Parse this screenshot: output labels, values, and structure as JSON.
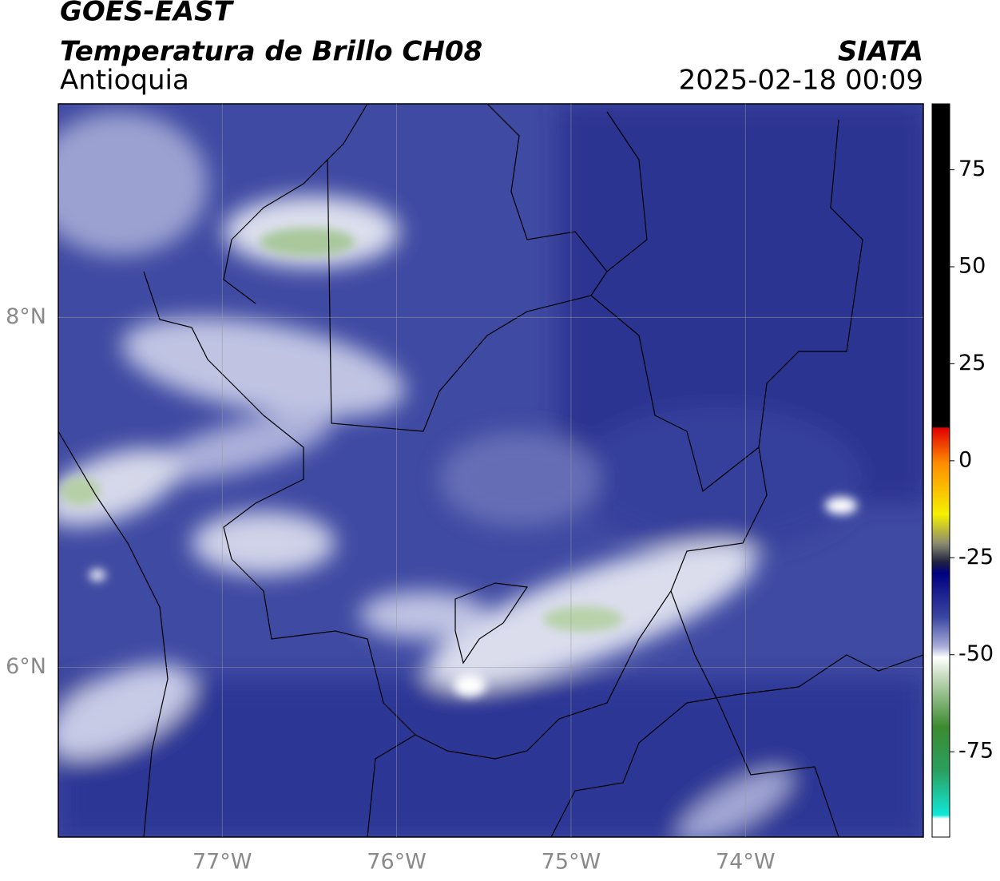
{
  "header": {
    "title": "GOES-EAST",
    "subtitle": "Temperatura de Brillo CH08",
    "region": "Antioquia",
    "source": "SIATA",
    "timestamp": "2025-02-18 00:09"
  },
  "map": {
    "lonlim": [
      -77.94,
      -72.98
    ],
    "latlim": [
      5.03,
      9.22
    ],
    "lonticks": [
      {
        "value": -77,
        "label": "77°W"
      },
      {
        "value": -76,
        "label": "76°W"
      },
      {
        "value": -75,
        "label": "75°W"
      },
      {
        "value": -74,
        "label": "74°W"
      }
    ],
    "latticks": [
      {
        "value": 8,
        "label": "8°N"
      },
      {
        "value": 6,
        "label": "6°N"
      }
    ]
  },
  "colorbar": {
    "lim": [
      -97,
      92
    ],
    "ticks": [
      75,
      50,
      25,
      0,
      -25,
      -50,
      -75
    ]
  }
}
